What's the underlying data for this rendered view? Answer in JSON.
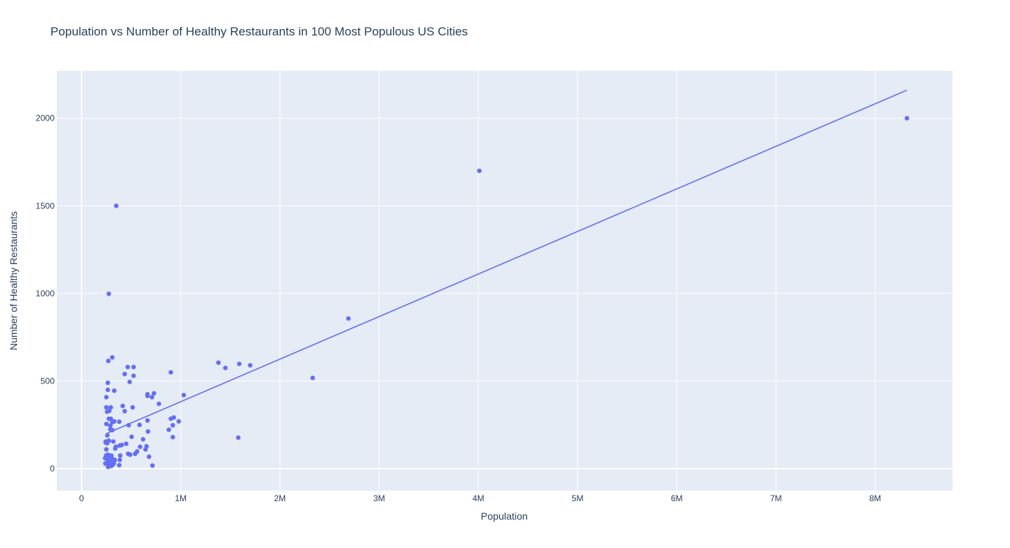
{
  "chart_data": {
    "type": "scatter",
    "title": "Population vs Number of Healthy Restaurants in 100 Most Populous US Cities",
    "xlabel": "Population",
    "ylabel": "Number of Healthy Restaurants",
    "xlim": [
      -250000,
      8780000
    ],
    "ylim": [
      -125,
      2270
    ],
    "x_ticks": [
      0,
      1000000,
      2000000,
      3000000,
      4000000,
      5000000,
      6000000,
      7000000,
      8000000
    ],
    "x_tick_labels": [
      "0",
      "1M",
      "2M",
      "3M",
      "4M",
      "5M",
      "6M",
      "7M",
      "8M"
    ],
    "y_ticks": [
      0,
      500,
      1000,
      1500,
      2000
    ],
    "y_tick_labels": [
      "0",
      "500",
      "1000",
      "1500",
      "2000"
    ],
    "grid": true,
    "legend": "none",
    "colors": {
      "marker": "#636efa",
      "trendline": "#636efa",
      "plot_bg": "#e5ecf6"
    },
    "trendline": {
      "x": [
        250000,
        8320000
      ],
      "y": [
        200,
        2160
      ]
    },
    "points": [
      {
        "x": 8320000,
        "y": 2000
      },
      {
        "x": 4010000,
        "y": 1700
      },
      {
        "x": 2690000,
        "y": 857
      },
      {
        "x": 2330000,
        "y": 518
      },
      {
        "x": 1700000,
        "y": 590
      },
      {
        "x": 1590000,
        "y": 598
      },
      {
        "x": 1580000,
        "y": 177
      },
      {
        "x": 1450000,
        "y": 575
      },
      {
        "x": 1380000,
        "y": 605
      },
      {
        "x": 1030000,
        "y": 420
      },
      {
        "x": 980000,
        "y": 270
      },
      {
        "x": 930000,
        "y": 292
      },
      {
        "x": 920000,
        "y": 248
      },
      {
        "x": 920000,
        "y": 180
      },
      {
        "x": 900000,
        "y": 550
      },
      {
        "x": 900000,
        "y": 285
      },
      {
        "x": 880000,
        "y": 222
      },
      {
        "x": 780000,
        "y": 370
      },
      {
        "x": 730000,
        "y": 430
      },
      {
        "x": 710000,
        "y": 408
      },
      {
        "x": 715000,
        "y": 18
      },
      {
        "x": 680000,
        "y": 68
      },
      {
        "x": 670000,
        "y": 212
      },
      {
        "x": 665000,
        "y": 275
      },
      {
        "x": 665000,
        "y": 425
      },
      {
        "x": 665000,
        "y": 415
      },
      {
        "x": 655000,
        "y": 128
      },
      {
        "x": 645000,
        "y": 110
      },
      {
        "x": 620000,
        "y": 168
      },
      {
        "x": 590000,
        "y": 125
      },
      {
        "x": 585000,
        "y": 250
      },
      {
        "x": 560000,
        "y": 98
      },
      {
        "x": 540000,
        "y": 85
      },
      {
        "x": 525000,
        "y": 580
      },
      {
        "x": 525000,
        "y": 530
      },
      {
        "x": 515000,
        "y": 350
      },
      {
        "x": 505000,
        "y": 182
      },
      {
        "x": 490000,
        "y": 80
      },
      {
        "x": 485000,
        "y": 495
      },
      {
        "x": 475000,
        "y": 248
      },
      {
        "x": 465000,
        "y": 580
      },
      {
        "x": 470000,
        "y": 85
      },
      {
        "x": 450000,
        "y": 142
      },
      {
        "x": 435000,
        "y": 540
      },
      {
        "x": 435000,
        "y": 328
      },
      {
        "x": 415000,
        "y": 358
      },
      {
        "x": 405000,
        "y": 135
      },
      {
        "x": 390000,
        "y": 75
      },
      {
        "x": 385000,
        "y": 132
      },
      {
        "x": 385000,
        "y": 50
      },
      {
        "x": 380000,
        "y": 268
      },
      {
        "x": 380000,
        "y": 20
      },
      {
        "x": 350000,
        "y": 1500
      },
      {
        "x": 345000,
        "y": 125
      },
      {
        "x": 340000,
        "y": 115
      },
      {
        "x": 330000,
        "y": 270
      },
      {
        "x": 330000,
        "y": 445
      },
      {
        "x": 330000,
        "y": 45
      },
      {
        "x": 325000,
        "y": 30
      },
      {
        "x": 320000,
        "y": 155
      },
      {
        "x": 310000,
        "y": 635
      },
      {
        "x": 310000,
        "y": 265
      },
      {
        "x": 310000,
        "y": 220
      },
      {
        "x": 305000,
        "y": 60
      },
      {
        "x": 300000,
        "y": 15
      },
      {
        "x": 295000,
        "y": 350
      },
      {
        "x": 295000,
        "y": 285
      },
      {
        "x": 290000,
        "y": 245
      },
      {
        "x": 290000,
        "y": 225
      },
      {
        "x": 285000,
        "y": 45
      },
      {
        "x": 280000,
        "y": 25
      },
      {
        "x": 280000,
        "y": 330
      },
      {
        "x": 275000,
        "y": 998
      },
      {
        "x": 275000,
        "y": 285
      },
      {
        "x": 275000,
        "y": 160
      },
      {
        "x": 270000,
        "y": 615
      },
      {
        "x": 270000,
        "y": 70
      },
      {
        "x": 268000,
        "y": 10
      },
      {
        "x": 265000,
        "y": 490
      },
      {
        "x": 265000,
        "y": 450
      },
      {
        "x": 265000,
        "y": 80
      },
      {
        "x": 262000,
        "y": 40
      },
      {
        "x": 260000,
        "y": 190
      },
      {
        "x": 258000,
        "y": 325
      },
      {
        "x": 258000,
        "y": 145
      },
      {
        "x": 255000,
        "y": 60
      },
      {
        "x": 252000,
        "y": 30
      },
      {
        "x": 250000,
        "y": 408
      },
      {
        "x": 250000,
        "y": 350
      },
      {
        "x": 250000,
        "y": 255
      },
      {
        "x": 250000,
        "y": 110
      },
      {
        "x": 248000,
        "y": 75
      },
      {
        "x": 245000,
        "y": 155
      },
      {
        "x": 242000,
        "y": 150
      },
      {
        "x": 240000,
        "y": 30
      },
      {
        "x": 238000,
        "y": 60
      },
      {
        "x": 300000,
        "y": 75
      },
      {
        "x": 320000,
        "y": 25
      },
      {
        "x": 335000,
        "y": 50
      },
      {
        "x": 290000,
        "y": 30
      }
    ]
  }
}
